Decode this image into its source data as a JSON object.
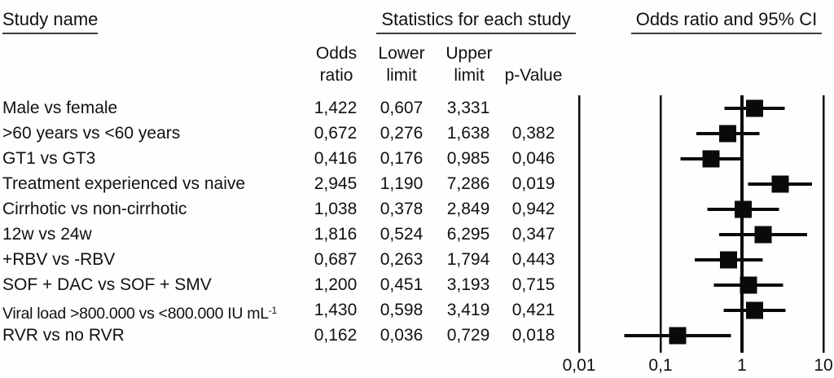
{
  "colors": {
    "text": "#111111",
    "underline": "#3d3d3d",
    "marker": "#0a0a0a",
    "line": "#0a0a0a"
  },
  "headers": {
    "study_name": "Study name",
    "statistics": "Statistics for each study",
    "plot": "Odds ratio and 95% CI"
  },
  "columns": {
    "odds_ratio": [
      "Odds",
      "ratio"
    ],
    "lower_limit": [
      "Lower",
      "limit"
    ],
    "upper_limit": [
      "Upper",
      "limit"
    ],
    "p_value": "p-Value"
  },
  "chart_data": {
    "type": "forest",
    "x_scale": "log10",
    "x_range": [
      0.01,
      10
    ],
    "reference_line_value": 1,
    "x_ticks": [
      {
        "label": "0,01",
        "value": 0.01
      },
      {
        "label": "0,1",
        "value": 0.1
      },
      {
        "label": "1",
        "value": 1
      },
      {
        "label": "10",
        "value": 10
      }
    ],
    "rows": [
      {
        "name": "Male vs female",
        "odds_ratio": "1,422",
        "lower_limit": "0,607",
        "upper_limit": "3,331",
        "p_value": "",
        "or": 1.422,
        "lo": 0.607,
        "hi": 3.331
      },
      {
        "name": ">60 years vs <60 years",
        "odds_ratio": "0,672",
        "lower_limit": "0,276",
        "upper_limit": "1,638",
        "p_value": "0,382",
        "or": 0.672,
        "lo": 0.276,
        "hi": 1.638
      },
      {
        "name": "GT1 vs GT3",
        "odds_ratio": "0,416",
        "lower_limit": "0,176",
        "upper_limit": "0,985",
        "p_value": "0,046",
        "or": 0.416,
        "lo": 0.176,
        "hi": 0.985
      },
      {
        "name": "Treatment experienced vs naive",
        "odds_ratio": "2,945",
        "lower_limit": "1,190",
        "upper_limit": "7,286",
        "p_value": "0,019",
        "or": 2.945,
        "lo": 1.19,
        "hi": 7.286
      },
      {
        "name": "Cirrhotic vs non-cirrhotic",
        "odds_ratio": "1,038",
        "lower_limit": "0,378",
        "upper_limit": "2,849",
        "p_value": "0,942",
        "or": 1.038,
        "lo": 0.378,
        "hi": 2.849
      },
      {
        "name": "12w vs 24w",
        "odds_ratio": "1,816",
        "lower_limit": "0,524",
        "upper_limit": "6,295",
        "p_value": "0,347",
        "or": 1.816,
        "lo": 0.524,
        "hi": 6.295
      },
      {
        "name": "+RBV vs -RBV",
        "odds_ratio": "0,687",
        "lower_limit": "0,263",
        "upper_limit": "1,794",
        "p_value": "0,443",
        "or": 0.687,
        "lo": 0.263,
        "hi": 1.794
      },
      {
        "name": "SOF + DAC vs SOF + SMV",
        "odds_ratio": "1,200",
        "lower_limit": "0,451",
        "upper_limit": "3,193",
        "p_value": "0,715",
        "or": 1.2,
        "lo": 0.451,
        "hi": 3.193
      },
      {
        "name": "Viral load >800.000 vs <800.000 IU mL",
        "name_sup": "-1",
        "odds_ratio": "1,430",
        "lower_limit": "0,598",
        "upper_limit": "3,419",
        "p_value": "0,421",
        "or": 1.43,
        "lo": 0.598,
        "hi": 3.419
      },
      {
        "name": "RVR vs no RVR",
        "odds_ratio": "0,162",
        "lower_limit": "0,036",
        "upper_limit": "0,729",
        "p_value": "0,018",
        "or": 0.162,
        "lo": 0.036,
        "hi": 0.729
      }
    ]
  }
}
